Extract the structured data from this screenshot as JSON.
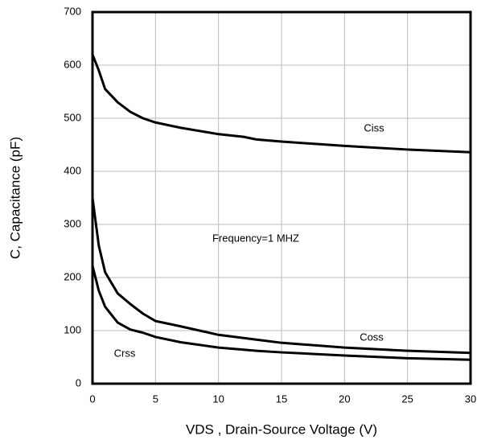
{
  "chart_data": {
    "type": "line",
    "xlabel": "VDS , Drain-Source Voltage (V)",
    "ylabel": "C, Capacitance (pF)",
    "annotations": [
      "Frequency=1 MHZ"
    ],
    "x": [
      0,
      0.5,
      1,
      2,
      3,
      4,
      5,
      7,
      10,
      12,
      13,
      15,
      20,
      25,
      30
    ],
    "series": [
      {
        "name": "Ciss",
        "color": "#000000",
        "values": [
          620,
          590,
          555,
          530,
          512,
          500,
          492,
          482,
          470,
          465,
          460,
          456,
          448,
          441,
          436
        ]
      },
      {
        "name": "Coss",
        "color": "#000000",
        "values": [
          350,
          260,
          210,
          170,
          150,
          132,
          118,
          108,
          92,
          86,
          83,
          77,
          68,
          62,
          58
        ]
      },
      {
        "name": "Crss",
        "color": "#000000",
        "values": [
          222,
          175,
          145,
          115,
          102,
          96,
          88,
          78,
          68,
          64,
          62,
          59,
          53,
          48,
          45
        ]
      }
    ],
    "xlim": [
      0,
      30
    ],
    "xticks": [
      0,
      5,
      10,
      15,
      20,
      25,
      30
    ],
    "ylim": [
      0,
      700
    ],
    "yticks": [
      0,
      100,
      200,
      300,
      400,
      500,
      600,
      700
    ],
    "grid": true
  }
}
